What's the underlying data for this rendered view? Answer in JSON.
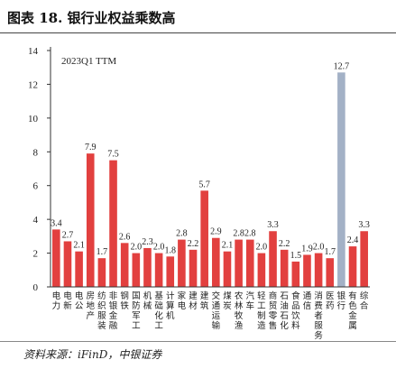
{
  "header": {
    "title": "图表 18. 银行业权益乘数高"
  },
  "footer": {
    "source": "资料来源：iFinD，中银证券"
  },
  "chart_data": {
    "type": "bar",
    "title": "",
    "annotation": "2023Q1  TTM",
    "xlabel": "",
    "ylabel": "",
    "ylim": [
      0,
      14
    ],
    "yticks": [
      0,
      2,
      4,
      6,
      8,
      10,
      12,
      14
    ],
    "grid": false,
    "legend": "none",
    "categories": [
      "电力",
      "电新",
      "电公",
      "房地产",
      "纺织服装",
      "非银金融",
      "钢铁",
      "国防军工",
      "机械",
      "基础化工",
      "计算机",
      "家电",
      "建材",
      "建筑",
      "交通运输",
      "煤炭",
      "农林牧渔",
      "汽车",
      "轻工制造",
      "商贸零售",
      "石油石化",
      "食品饮料",
      "通信",
      "消费者服务",
      "医药",
      "银行",
      "有色金属",
      "综合"
    ],
    "values": [
      3.4,
      2.7,
      2.1,
      7.9,
      1.7,
      7.5,
      2.6,
      2.0,
      2.3,
      2.0,
      1.8,
      2.8,
      2.2,
      5.7,
      2.9,
      2.1,
      2.8,
      2.8,
      2.0,
      3.3,
      2.2,
      1.5,
      1.9,
      2.0,
      1.7,
      12.7,
      2.4,
      3.3
    ],
    "value_labels": [
      "3.4",
      "2.7",
      "2.1",
      "7.9",
      "1.7",
      "7.5",
      "2.6",
      "2.0",
      "2.3",
      "2.0",
      "1.8",
      "2.8",
      "2.2",
      "5.7",
      "2.9",
      "2.1",
      "2.8",
      "2.8",
      "2.0",
      "3.3",
      "2.2",
      "1.5",
      "1.9",
      "2.0",
      "1.7",
      "12.7",
      "2.4",
      "3.3"
    ],
    "highlight_category": "银行",
    "colors": {
      "bar": "#e2403f",
      "highlight": "#a3b1c6",
      "axis": "#333333"
    }
  }
}
